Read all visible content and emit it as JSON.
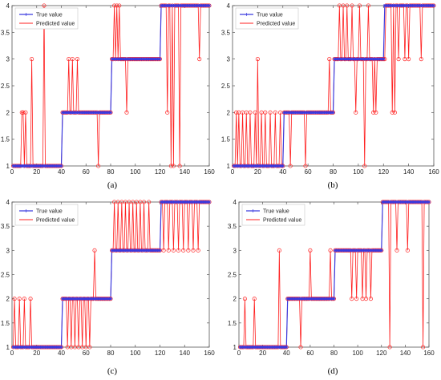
{
  "colors": {
    "true": "#3a3adf",
    "pred": "#ff2020",
    "axis": "#555555"
  },
  "chart_data": [
    {
      "panel": "a",
      "caption": "(a)",
      "type": "line",
      "xlim": [
        0,
        160
      ],
      "ylim": [
        1,
        4
      ],
      "xticks": [
        "0",
        "20",
        "40",
        "60",
        "80",
        "100",
        "120",
        "140",
        "160"
      ],
      "yticks": [
        "1",
        "1.5",
        "2",
        "2.5",
        "3",
        "3.5",
        "4"
      ],
      "legend": {
        "placement": "top-left",
        "entries": [
          "True value",
          "Predicted value"
        ]
      },
      "series": [
        {
          "name": "True value",
          "segments": [
            [
              1,
              40,
              1
            ],
            [
              41,
              80,
              2
            ],
            [
              81,
              120,
              3
            ],
            [
              121,
              160,
              4
            ]
          ]
        },
        {
          "name": "Predicted value",
          "overrides": [
            [
              8,
              2
            ],
            [
              9,
              2
            ],
            [
              11,
              2
            ],
            [
              16,
              3
            ],
            [
              26,
              4
            ],
            [
              46,
              3
            ],
            [
              49,
              3
            ],
            [
              53,
              3
            ],
            [
              70,
              1
            ],
            [
              83,
              4
            ],
            [
              85,
              4
            ],
            [
              87,
              4
            ],
            [
              93,
              2
            ],
            [
              121,
              4
            ],
            [
              123,
              4
            ],
            [
              126,
              2
            ],
            [
              129,
              1
            ],
            [
              131,
              1
            ],
            [
              136,
              1
            ],
            [
              152,
              3
            ]
          ]
        }
      ]
    },
    {
      "panel": "b",
      "caption": "(b)",
      "type": "line",
      "xlim": [
        0,
        160
      ],
      "ylim": [
        1,
        4
      ],
      "xticks": [
        "0",
        "20",
        "40",
        "60",
        "80",
        "100",
        "120",
        "140",
        "160"
      ],
      "yticks": [
        "1",
        "1.5",
        "2",
        "2.5",
        "3",
        "3.5",
        "4"
      ],
      "legend": {
        "placement": "top-left",
        "entries": [
          "True value",
          "Predicted value"
        ]
      },
      "series": [
        {
          "name": "True value",
          "segments": [
            [
              1,
              40,
              1
            ],
            [
              41,
              80,
              2
            ],
            [
              81,
              120,
              3
            ],
            [
              121,
              160,
              4
            ]
          ]
        },
        {
          "name": "Predicted value",
          "overrides": [
            [
              3,
              2
            ],
            [
              5,
              2
            ],
            [
              8,
              2
            ],
            [
              11,
              2
            ],
            [
              14,
              2
            ],
            [
              18,
              2
            ],
            [
              20,
              3
            ],
            [
              23,
              2
            ],
            [
              26,
              2
            ],
            [
              30,
              2
            ],
            [
              34,
              2
            ],
            [
              38,
              2
            ],
            [
              46,
              1
            ],
            [
              58,
              1
            ],
            [
              77,
              3
            ],
            [
              85,
              4
            ],
            [
              88,
              4
            ],
            [
              91,
              4
            ],
            [
              95,
              4
            ],
            [
              98,
              2
            ],
            [
              101,
              4
            ],
            [
              105,
              1
            ],
            [
              108,
              4
            ],
            [
              112,
              2
            ],
            [
              114,
              2
            ],
            [
              121,
              3
            ],
            [
              127,
              2
            ],
            [
              129,
              2
            ],
            [
              132,
              3
            ],
            [
              135,
              4
            ],
            [
              137,
              3
            ],
            [
              140,
              3
            ],
            [
              150,
              3
            ]
          ]
        }
      ]
    },
    {
      "panel": "c",
      "caption": "(c)",
      "type": "line",
      "xlim": [
        0,
        160
      ],
      "ylim": [
        1,
        4
      ],
      "xticks": [
        "0",
        "20",
        "40",
        "60",
        "80",
        "100",
        "120",
        "140",
        "160"
      ],
      "yticks": [
        "1",
        "1.5",
        "2",
        "2.5",
        "3",
        "3.5",
        "4"
      ],
      "legend": {
        "placement": "top-left",
        "entries": [
          "True value",
          "Predicted value"
        ]
      },
      "series": [
        {
          "name": "True value",
          "segments": [
            [
              1,
              40,
              1
            ],
            [
              41,
              80,
              2
            ],
            [
              81,
              120,
              3
            ],
            [
              121,
              160,
              4
            ]
          ]
        },
        {
          "name": "Predicted value",
          "overrides": [
            [
              2,
              2
            ],
            [
              6,
              2
            ],
            [
              10,
              2
            ],
            [
              15,
              2
            ],
            [
              45,
              1
            ],
            [
              48,
              1
            ],
            [
              51,
              1
            ],
            [
              54,
              1
            ],
            [
              57,
              1
            ],
            [
              60,
              1
            ],
            [
              63,
              1
            ],
            [
              67,
              3
            ],
            [
              83,
              4
            ],
            [
              86,
              4
            ],
            [
              89,
              4
            ],
            [
              92,
              4
            ],
            [
              95,
              4
            ],
            [
              98,
              4
            ],
            [
              101,
              4
            ],
            [
              104,
              4
            ],
            [
              107,
              4
            ],
            [
              111,
              4
            ],
            [
              123,
              3
            ],
            [
              127,
              3
            ],
            [
              131,
              3
            ],
            [
              135,
              3
            ],
            [
              139,
              3
            ],
            [
              143,
              3
            ],
            [
              147,
              3
            ],
            [
              151,
              3
            ]
          ]
        }
      ]
    },
    {
      "panel": "d",
      "caption": "(d)",
      "type": "line",
      "xlim": [
        0,
        160
      ],
      "ylim": [
        1,
        4
      ],
      "xticks": [
        "0",
        "20",
        "40",
        "60",
        "80",
        "100",
        "120",
        "140",
        "160"
      ],
      "yticks": [
        "1",
        "1.5",
        "2",
        "2.5",
        "3",
        "3.5",
        "4"
      ],
      "legend": {
        "placement": "top-left",
        "entries": [
          "True value",
          "Predicted value"
        ]
      },
      "series": [
        {
          "name": "True value",
          "segments": [
            [
              1,
              40,
              1
            ],
            [
              41,
              80,
              2
            ],
            [
              81,
              120,
              3
            ],
            [
              121,
              160,
              4
            ]
          ]
        },
        {
          "name": "Predicted value",
          "overrides": [
            [
              5,
              2
            ],
            [
              13,
              2
            ],
            [
              34,
              3
            ],
            [
              52,
              1
            ],
            [
              60,
              3
            ],
            [
              77,
              3
            ],
            [
              95,
              2
            ],
            [
              99,
              2
            ],
            [
              104,
              2
            ],
            [
              107,
              2
            ],
            [
              111,
              2
            ],
            [
              127,
              1
            ],
            [
              133,
              3
            ],
            [
              142,
              3
            ],
            [
              155,
              1
            ]
          ]
        }
      ]
    }
  ]
}
